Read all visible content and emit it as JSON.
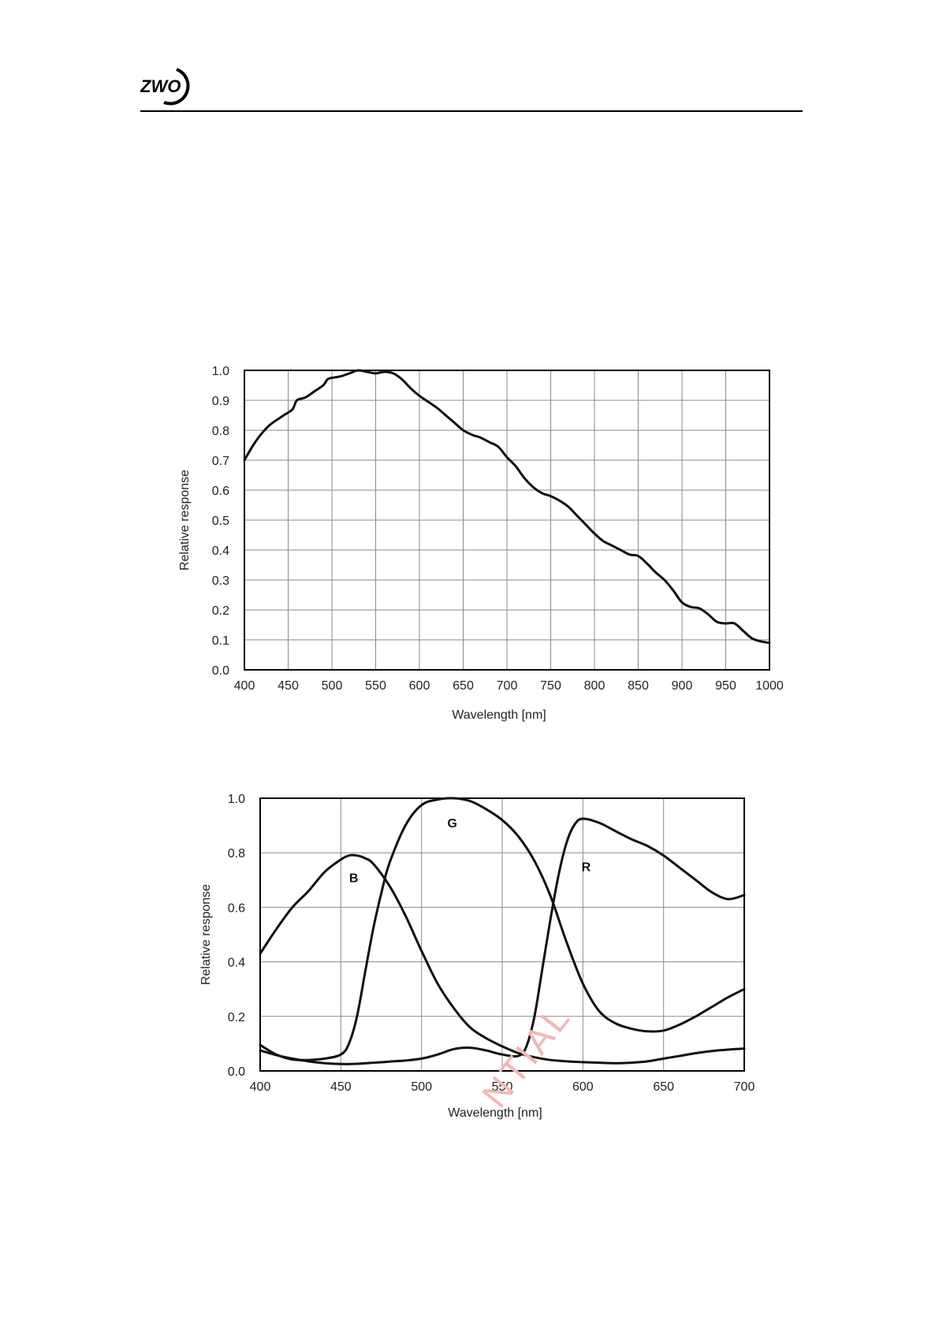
{
  "header": {
    "logo_text": "ZWO"
  },
  "watermark": {
    "text": "NTIAL"
  },
  "chart_data": [
    {
      "type": "line",
      "xlabel": "Wavelength [nm]",
      "ylabel": "Relative response",
      "xlim": [
        400,
        1000
      ],
      "ylim": [
        0.0,
        1.0
      ],
      "xticks": [
        400,
        450,
        500,
        550,
        600,
        650,
        700,
        750,
        800,
        850,
        900,
        950,
        1000
      ],
      "yticks": [
        0.0,
        0.1,
        0.2,
        0.3,
        0.4,
        0.5,
        0.6,
        0.7,
        0.8,
        0.9,
        1.0
      ],
      "ytick_decimals": 1,
      "grid": true,
      "series": [
        {
          "x": [
            400,
            410,
            420,
            430,
            445,
            455,
            460,
            470,
            480,
            490,
            495,
            500,
            510,
            520,
            530,
            540,
            550,
            560,
            570,
            580,
            590,
            600,
            610,
            620,
            630,
            640,
            650,
            660,
            670,
            680,
            690,
            700,
            710,
            720,
            730,
            740,
            750,
            760,
            770,
            780,
            790,
            800,
            810,
            820,
            830,
            840,
            850,
            860,
            870,
            880,
            890,
            900,
            910,
            920,
            930,
            940,
            950,
            960,
            970,
            980,
            990,
            1000
          ],
          "y": [
            0.7,
            0.75,
            0.79,
            0.82,
            0.85,
            0.87,
            0.9,
            0.91,
            0.93,
            0.95,
            0.97,
            0.975,
            0.98,
            0.99,
            1.0,
            0.995,
            0.99,
            0.995,
            0.99,
            0.97,
            0.94,
            0.915,
            0.895,
            0.875,
            0.85,
            0.825,
            0.8,
            0.785,
            0.775,
            0.76,
            0.745,
            0.71,
            0.68,
            0.64,
            0.61,
            0.59,
            0.58,
            0.565,
            0.545,
            0.515,
            0.485,
            0.455,
            0.43,
            0.415,
            0.4,
            0.385,
            0.38,
            0.355,
            0.325,
            0.3,
            0.265,
            0.225,
            0.21,
            0.205,
            0.185,
            0.16,
            0.155,
            0.155,
            0.13,
            0.105,
            0.095,
            0.09
          ]
        }
      ]
    },
    {
      "type": "line",
      "xlabel": "Wavelength [nm]",
      "ylabel": "Relative response",
      "xlim": [
        400,
        700
      ],
      "ylim": [
        0.0,
        1.0
      ],
      "xticks": [
        400,
        450,
        500,
        550,
        600,
        650,
        700
      ],
      "yticks": [
        0.0,
        0.2,
        0.4,
        0.6,
        0.8,
        1.0
      ],
      "ytick_decimals": 1,
      "grid": true,
      "series": [
        {
          "name": "B",
          "label_at": [
            458,
            0.71
          ],
          "x": [
            400,
            410,
            420,
            430,
            440,
            450,
            455,
            460,
            465,
            470,
            480,
            490,
            500,
            510,
            520,
            530,
            540,
            550,
            560,
            570,
            580,
            590,
            600,
            610,
            620,
            630,
            640,
            650,
            660,
            670,
            680,
            690,
            700
          ],
          "y": [
            0.43,
            0.52,
            0.6,
            0.66,
            0.73,
            0.775,
            0.79,
            0.79,
            0.78,
            0.76,
            0.68,
            0.57,
            0.44,
            0.32,
            0.23,
            0.16,
            0.12,
            0.09,
            0.065,
            0.05,
            0.04,
            0.035,
            0.032,
            0.03,
            0.028,
            0.03,
            0.035,
            0.045,
            0.055,
            0.065,
            0.073,
            0.078,
            0.082
          ]
        },
        {
          "name": "G",
          "label_at": [
            519,
            0.91
          ],
          "x": [
            400,
            410,
            420,
            430,
            440,
            450,
            455,
            460,
            465,
            470,
            475,
            480,
            490,
            500,
            510,
            520,
            530,
            540,
            550,
            560,
            570,
            580,
            590,
            600,
            610,
            620,
            630,
            640,
            650,
            660,
            670,
            680,
            690,
            700
          ],
          "y": [
            0.095,
            0.06,
            0.042,
            0.04,
            0.045,
            0.06,
            0.1,
            0.2,
            0.36,
            0.52,
            0.65,
            0.76,
            0.9,
            0.975,
            0.995,
            1.0,
            0.99,
            0.96,
            0.92,
            0.86,
            0.77,
            0.64,
            0.47,
            0.32,
            0.22,
            0.175,
            0.155,
            0.145,
            0.148,
            0.17,
            0.2,
            0.235,
            0.27,
            0.3
          ]
        },
        {
          "name": "R",
          "label_at": [
            602,
            0.75
          ],
          "x": [
            400,
            410,
            420,
            430,
            440,
            450,
            460,
            470,
            480,
            490,
            500,
            510,
            520,
            530,
            540,
            550,
            560,
            565,
            570,
            575,
            580,
            585,
            590,
            595,
            600,
            610,
            620,
            630,
            640,
            650,
            660,
            670,
            680,
            690,
            700
          ],
          "y": [
            0.075,
            0.058,
            0.045,
            0.035,
            0.028,
            0.025,
            0.026,
            0.03,
            0.034,
            0.038,
            0.045,
            0.06,
            0.08,
            0.085,
            0.075,
            0.06,
            0.055,
            0.09,
            0.2,
            0.38,
            0.56,
            0.72,
            0.84,
            0.905,
            0.925,
            0.91,
            0.88,
            0.85,
            0.825,
            0.79,
            0.745,
            0.7,
            0.655,
            0.63,
            0.645
          ]
        }
      ]
    }
  ]
}
